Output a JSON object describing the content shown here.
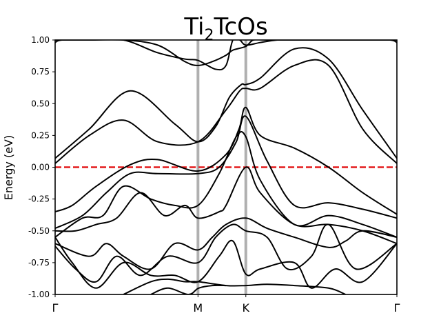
{
  "chart_data": {
    "type": "line",
    "title_parts": {
      "pre": "Ti",
      "sub": "2",
      "post": "TcOs"
    },
    "xlabel": "",
    "ylabel": "Energy (eV)",
    "ylim": [
      -1.0,
      1.0
    ],
    "yticks": [
      "1.00",
      "0.75",
      "0.50",
      "0.25",
      "0.00",
      "-0.25",
      "-0.50",
      "-0.75",
      "-1.00"
    ],
    "ytick_values": [
      1.0,
      0.75,
      0.5,
      0.25,
      0.0,
      -0.25,
      -0.5,
      -0.75,
      -1.0
    ],
    "xlim": [
      0,
      1
    ],
    "high_symmetry_points": [
      {
        "label": "Γ",
        "x": 0.0
      },
      {
        "label": "M",
        "x": 0.418
      },
      {
        "label": "K",
        "x": 0.558
      },
      {
        "label": "Γ",
        "x": 1.0
      }
    ],
    "fermi_level": 0.0,
    "colors": {
      "band": "#000000",
      "fermi": "#e31a1c",
      "sympoint_line": "#b0b0b0"
    },
    "grid": false,
    "series": [
      {
        "x": [
          0.0,
          0.1,
          0.22,
          0.35,
          0.418,
          0.47,
          0.51,
          0.545,
          0.558,
          0.6,
          0.7,
          0.8,
          0.9,
          1.0
        ],
        "y": [
          0.07,
          0.3,
          0.6,
          0.34,
          0.2,
          0.32,
          0.55,
          0.65,
          0.65,
          0.7,
          0.93,
          0.85,
          0.45,
          0.07
        ]
      },
      {
        "x": [
          0.0,
          0.1,
          0.2,
          0.3,
          0.418,
          0.5,
          0.54,
          0.558,
          0.6,
          0.7,
          0.8,
          0.9,
          1.0
        ],
        "y": [
          0.03,
          0.25,
          0.37,
          0.2,
          0.2,
          0.45,
          0.6,
          0.62,
          0.62,
          0.8,
          0.8,
          0.3,
          0.03
        ]
      },
      {
        "x": [
          0.0,
          0.05,
          0.12,
          0.22,
          0.3,
          0.418,
          0.5,
          0.538,
          0.558,
          0.6,
          0.7,
          0.8,
          0.9,
          1.0
        ],
        "y": [
          -0.35,
          -0.3,
          -0.15,
          0.02,
          0.06,
          -0.03,
          0.1,
          0.3,
          0.47,
          0.25,
          0.15,
          0.0,
          -0.2,
          -0.37
        ]
      },
      {
        "x": [
          0.0,
          0.08,
          0.15,
          0.22,
          0.3,
          0.418,
          0.48,
          0.53,
          0.558,
          0.62,
          0.7,
          0.8,
          0.9,
          1.0
        ],
        "y": [
          -0.48,
          -0.38,
          -0.2,
          -0.05,
          -0.05,
          -0.05,
          0.0,
          0.2,
          0.4,
          0.05,
          -0.3,
          -0.28,
          -0.33,
          -0.4
        ]
      },
      {
        "x": [
          0.0,
          0.08,
          0.14,
          0.2,
          0.28,
          0.35,
          0.418,
          0.48,
          0.53,
          0.558,
          0.6,
          0.7,
          0.8,
          0.9,
          1.0
        ],
        "y": [
          -0.55,
          -0.4,
          -0.38,
          -0.15,
          -0.25,
          -0.3,
          -0.3,
          -0.05,
          0.24,
          0.24,
          -0.1,
          -0.45,
          -0.38,
          -0.45,
          -0.55
        ]
      },
      {
        "x": [
          0.0,
          0.06,
          0.12,
          0.18,
          0.25,
          0.32,
          0.38,
          0.418,
          0.48,
          0.5,
          0.558,
          0.6,
          0.7,
          0.8,
          0.9,
          1.0
        ],
        "y": [
          -0.5,
          -0.5,
          -0.45,
          -0.4,
          -0.2,
          -0.38,
          -0.3,
          -0.4,
          -0.35,
          -0.3,
          0.0,
          -0.2,
          -0.45,
          -0.45,
          -0.5,
          -0.6
        ]
      },
      {
        "x": [
          0.0,
          0.1,
          0.15,
          0.2,
          0.28,
          0.35,
          0.418,
          0.46,
          0.5,
          0.558,
          0.62,
          0.7,
          0.8,
          0.85,
          0.9,
          1.0
        ],
        "y": [
          -0.6,
          -0.7,
          -0.6,
          -0.7,
          -0.8,
          -0.6,
          -0.65,
          -0.55,
          -0.45,
          -0.4,
          -0.48,
          -0.55,
          -0.63,
          -0.58,
          -0.5,
          -0.55
        ]
      },
      {
        "x": [
          0.0,
          0.06,
          0.12,
          0.18,
          0.25,
          0.33,
          0.418,
          0.47,
          0.52,
          0.558,
          0.62,
          0.68,
          0.75,
          0.8,
          0.88,
          1.0
        ],
        "y": [
          -0.62,
          -0.8,
          -0.9,
          -0.7,
          -0.85,
          -0.7,
          -0.75,
          -0.55,
          -0.45,
          -0.5,
          -0.55,
          -0.8,
          -0.7,
          -0.45,
          -0.8,
          -0.6
        ]
      },
      {
        "x": [
          0.0,
          0.05,
          0.12,
          0.2,
          0.28,
          0.35,
          0.418,
          0.48,
          0.52,
          0.558,
          0.6,
          0.7,
          0.75,
          0.82,
          0.9,
          1.0
        ],
        "y": [
          -0.55,
          -0.75,
          -0.95,
          -0.75,
          -0.85,
          -0.85,
          -0.9,
          -0.7,
          -0.58,
          -0.84,
          -0.8,
          -0.75,
          -0.95,
          -0.8,
          -0.9,
          -0.6
        ]
      },
      {
        "x": [
          0.2,
          0.28,
          0.33,
          0.38,
          0.418,
          0.5,
          0.558,
          0.62,
          0.7,
          0.8,
          0.85
        ],
        "y": [
          -1.0,
          -0.9,
          -0.88,
          -0.9,
          -0.9,
          -0.93,
          -0.93,
          -0.92,
          -0.93,
          -0.95,
          -1.0
        ]
      },
      {
        "x": [
          0.28,
          0.33,
          0.39,
          0.42,
          0.46,
          0.5
        ],
        "y": [
          -1.0,
          -0.95,
          -1.0,
          -0.95,
          -0.93,
          -0.93
        ]
      },
      {
        "x": [
          0.0,
          0.02,
          0.1,
          0.2,
          0.3,
          0.38,
          0.418,
          0.47,
          0.5,
          0.52,
          0.54,
          0.558,
          0.6,
          0.65,
          0.7,
          0.8,
          0.9,
          1.0
        ],
        "y": [
          0.98,
          1.0,
          1.0,
          1.0,
          0.9,
          0.85,
          0.84,
          0.77,
          0.8,
          1.0,
          1.0,
          0.96,
          0.98,
          1.0,
          1.0,
          1.0,
          1.0,
          1.0
        ]
      },
      {
        "x": [
          0.0,
          0.1,
          0.2,
          0.3,
          0.38,
          0.418,
          0.46,
          0.5,
          0.52,
          0.558,
          0.58,
          0.62,
          0.7,
          0.8,
          0.9,
          0.98,
          1.0
        ],
        "y": [
          1.0,
          1.0,
          1.0,
          0.96,
          0.83,
          0.8,
          0.83,
          0.88,
          0.92,
          0.95,
          1.0,
          1.0,
          1.0,
          1.0,
          1.0,
          1.0,
          0.98
        ]
      }
    ]
  }
}
